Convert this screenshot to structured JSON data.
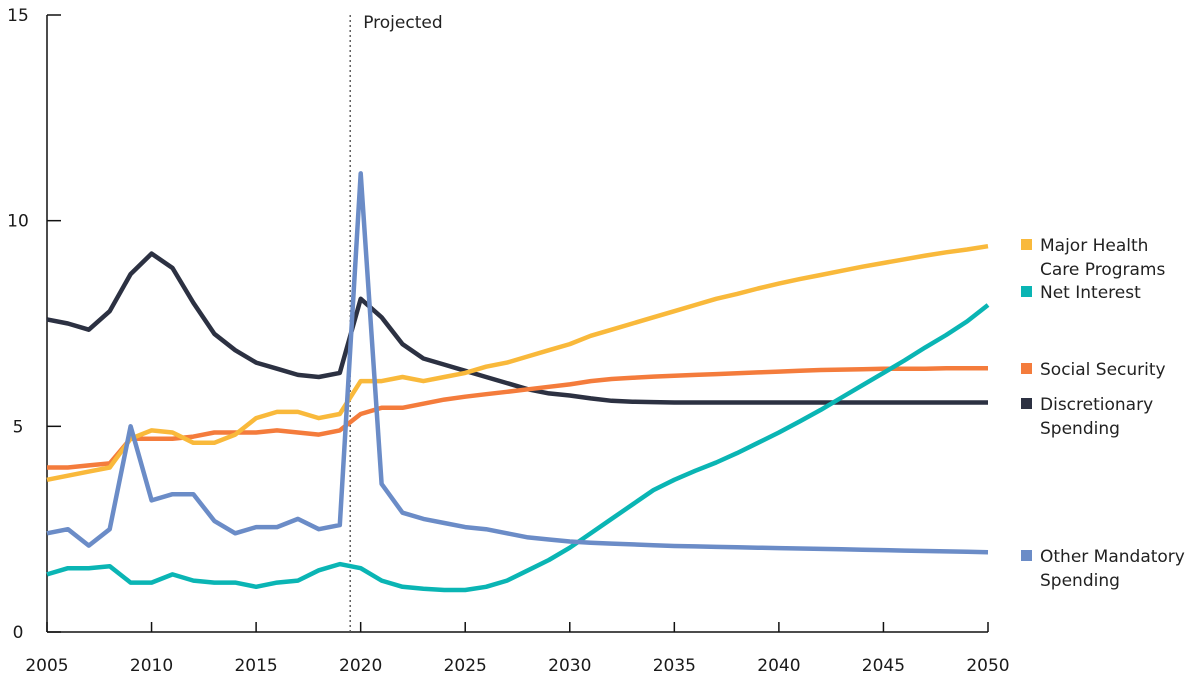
{
  "chart_data": {
    "type": "line",
    "title": "",
    "xlabel": "",
    "ylabel": "",
    "xlim": [
      2005,
      2050
    ],
    "ylim": [
      0,
      15
    ],
    "x_ticks": [
      "2005",
      "2010",
      "2015",
      "2020",
      "2025",
      "2030",
      "2035",
      "2040",
      "2045",
      "2050"
    ],
    "y_ticks": [
      "0",
      "5",
      "10",
      "15"
    ],
    "projection_marker": {
      "x": 2019.5,
      "label": "Projected"
    },
    "x": [
      2005,
      2006,
      2007,
      2008,
      2009,
      2010,
      2011,
      2012,
      2013,
      2014,
      2015,
      2016,
      2017,
      2018,
      2019,
      2020,
      2021,
      2022,
      2023,
      2024,
      2025,
      2026,
      2027,
      2028,
      2029,
      2030,
      2031,
      2032,
      2033,
      2034,
      2035,
      2036,
      2037,
      2038,
      2039,
      2040,
      2041,
      2042,
      2043,
      2044,
      2045,
      2046,
      2047,
      2048,
      2049,
      2050
    ],
    "series": [
      {
        "name": "Major Health Care Programs",
        "legend_lines": [
          "Major Health",
          "Care Programs"
        ],
        "color": "#f9b93b",
        "values": [
          3.7,
          3.8,
          3.9,
          4.0,
          4.7,
          4.9,
          4.85,
          4.6,
          4.6,
          4.8,
          5.2,
          5.35,
          5.35,
          5.2,
          5.3,
          6.1,
          6.1,
          6.2,
          6.1,
          6.2,
          6.3,
          6.45,
          6.55,
          6.7,
          6.85,
          7.0,
          7.2,
          7.35,
          7.5,
          7.65,
          7.8,
          7.95,
          8.1,
          8.22,
          8.35,
          8.47,
          8.58,
          8.68,
          8.78,
          8.88,
          8.97,
          9.06,
          9.15,
          9.23,
          9.3,
          9.38
        ]
      },
      {
        "name": "Net Interest",
        "legend_lines": [
          "Net Interest"
        ],
        "color": "#0ab5b4",
        "values": [
          1.4,
          1.55,
          1.55,
          1.6,
          1.2,
          1.2,
          1.4,
          1.25,
          1.2,
          1.2,
          1.1,
          1.2,
          1.25,
          1.5,
          1.65,
          1.55,
          1.25,
          1.1,
          1.05,
          1.02,
          1.02,
          1.1,
          1.25,
          1.5,
          1.75,
          2.05,
          2.4,
          2.75,
          3.1,
          3.45,
          3.7,
          3.92,
          4.12,
          4.35,
          4.6,
          4.85,
          5.12,
          5.4,
          5.7,
          6.0,
          6.3,
          6.6,
          6.92,
          7.22,
          7.55,
          7.95
        ]
      },
      {
        "name": "Social Security",
        "legend_lines": [
          "Social Security"
        ],
        "color": "#f47c3c",
        "values": [
          4.0,
          4.0,
          4.05,
          4.1,
          4.7,
          4.7,
          4.7,
          4.75,
          4.85,
          4.85,
          4.85,
          4.9,
          4.85,
          4.8,
          4.9,
          5.3,
          5.45,
          5.45,
          5.55,
          5.65,
          5.72,
          5.78,
          5.84,
          5.9,
          5.96,
          6.02,
          6.1,
          6.15,
          6.18,
          6.21,
          6.23,
          6.25,
          6.27,
          6.29,
          6.31,
          6.33,
          6.35,
          6.37,
          6.38,
          6.39,
          6.4,
          6.4,
          6.4,
          6.41,
          6.41,
          6.41
        ]
      },
      {
        "name": "Discretionary Spending",
        "legend_lines": [
          "Discretionary",
          "Spending"
        ],
        "color": "#2c3142",
        "values": [
          7.6,
          7.5,
          7.35,
          7.8,
          8.7,
          9.2,
          8.85,
          8.0,
          7.25,
          6.85,
          6.55,
          6.4,
          6.25,
          6.2,
          6.3,
          8.1,
          7.65,
          7.0,
          6.65,
          6.5,
          6.35,
          6.2,
          6.05,
          5.9,
          5.8,
          5.75,
          5.68,
          5.62,
          5.6,
          5.59,
          5.58,
          5.58,
          5.58,
          5.58,
          5.58,
          5.58,
          5.58,
          5.58,
          5.58,
          5.58,
          5.58,
          5.58,
          5.58,
          5.58,
          5.58,
          5.58
        ]
      },
      {
        "name": "Other Mandatory Spending",
        "legend_lines": [
          "Other Mandatory",
          "Spending"
        ],
        "color": "#6b8cc7",
        "values": [
          2.4,
          2.5,
          2.1,
          2.5,
          5.0,
          3.2,
          3.35,
          3.35,
          2.7,
          2.4,
          2.55,
          2.55,
          2.75,
          2.5,
          2.6,
          11.15,
          3.6,
          2.9,
          2.75,
          2.65,
          2.55,
          2.5,
          2.4,
          2.3,
          2.25,
          2.2,
          2.17,
          2.15,
          2.13,
          2.11,
          2.09,
          2.08,
          2.07,
          2.06,
          2.05,
          2.04,
          2.03,
          2.02,
          2.01,
          2.0,
          1.99,
          1.98,
          1.97,
          1.96,
          1.95,
          1.94
        ]
      }
    ]
  }
}
